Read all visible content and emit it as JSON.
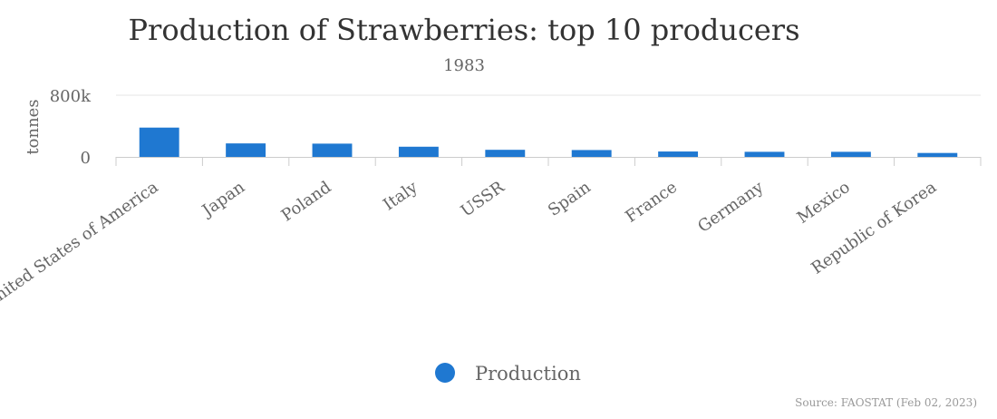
{
  "chart_data": {
    "type": "bar",
    "title": "Production of Strawberries: top 10 producers",
    "subtitle": "1983",
    "ylabel": "tonnes",
    "xlabel": "",
    "categories": [
      "United States of America",
      "Japan",
      "Poland",
      "Italy",
      "USSR",
      "Spain",
      "France",
      "Germany",
      "Mexico",
      "Republic of Korea"
    ],
    "series": [
      {
        "name": "Production",
        "values": [
          380000,
          175000,
          172000,
          132000,
          92000,
          89000,
          70000,
          66000,
          66000,
          51000
        ]
      }
    ],
    "ylim": [
      0,
      800000
    ],
    "yticks": [
      {
        "value": 0,
        "label": "0"
      },
      {
        "value": 800000,
        "label": "800k"
      }
    ],
    "grid": true,
    "legend": "bottom-center",
    "bar_color": "#1f78d1",
    "source": "Source: FAOSTAT (Feb 02, 2023)"
  }
}
